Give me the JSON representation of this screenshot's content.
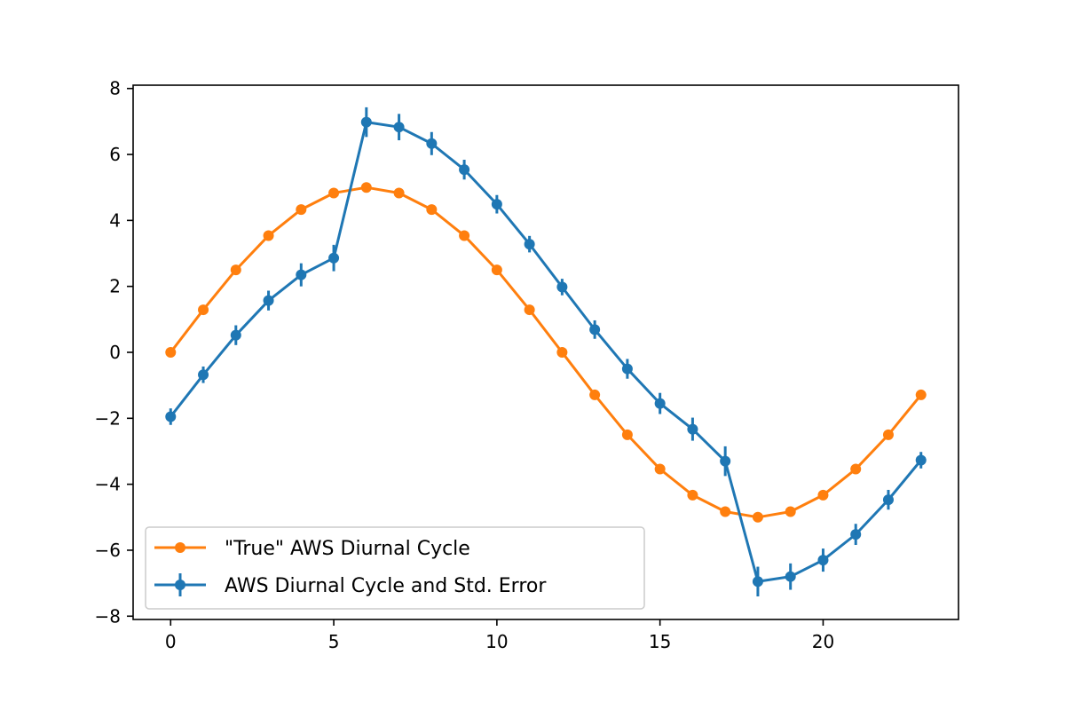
{
  "chart_data": {
    "type": "line",
    "title": "",
    "xlabel": "",
    "ylabel": "",
    "xlim": [
      -1.15,
      24.15
    ],
    "ylim": [
      -8.1,
      8.1
    ],
    "xticks": [
      0,
      5,
      10,
      15,
      20
    ],
    "yticks": [
      -8,
      -6,
      -4,
      -2,
      0,
      2,
      4,
      6,
      8
    ],
    "grid": false,
    "legend_position": "lower-left",
    "x": [
      0,
      1,
      2,
      3,
      4,
      5,
      6,
      7,
      8,
      9,
      10,
      11,
      12,
      13,
      14,
      15,
      16,
      17,
      18,
      19,
      20,
      21,
      22,
      23
    ],
    "series": [
      {
        "name": "\"True\" AWS Diurnal Cycle",
        "color": "#ff7f0e",
        "marker": "circle",
        "values": [
          0.0,
          1.29,
          2.5,
          3.54,
          4.33,
          4.83,
          5.0,
          4.83,
          4.33,
          3.54,
          2.5,
          1.29,
          0.0,
          -1.29,
          -2.5,
          -3.54,
          -4.33,
          -4.83,
          -5.0,
          -4.83,
          -4.33,
          -3.54,
          -2.5,
          -1.29
        ]
      },
      {
        "name": "AWS Diurnal Cycle and Std. Error",
        "color": "#1f77b4",
        "marker": "circle",
        "error_bars": true,
        "values": [
          -1.95,
          -0.68,
          0.52,
          1.57,
          2.35,
          2.86,
          6.98,
          6.83,
          6.33,
          5.54,
          4.49,
          3.28,
          1.98,
          0.69,
          -0.5,
          -1.55,
          -2.33,
          -3.3,
          -6.95,
          -6.8,
          -6.3,
          -5.52,
          -4.47,
          -3.27
        ],
        "errors": [
          0.25,
          0.25,
          0.3,
          0.3,
          0.35,
          0.4,
          0.45,
          0.4,
          0.35,
          0.3,
          0.28,
          0.25,
          0.25,
          0.28,
          0.3,
          0.32,
          0.35,
          0.45,
          0.45,
          0.4,
          0.35,
          0.32,
          0.3,
          0.25
        ]
      }
    ]
  }
}
